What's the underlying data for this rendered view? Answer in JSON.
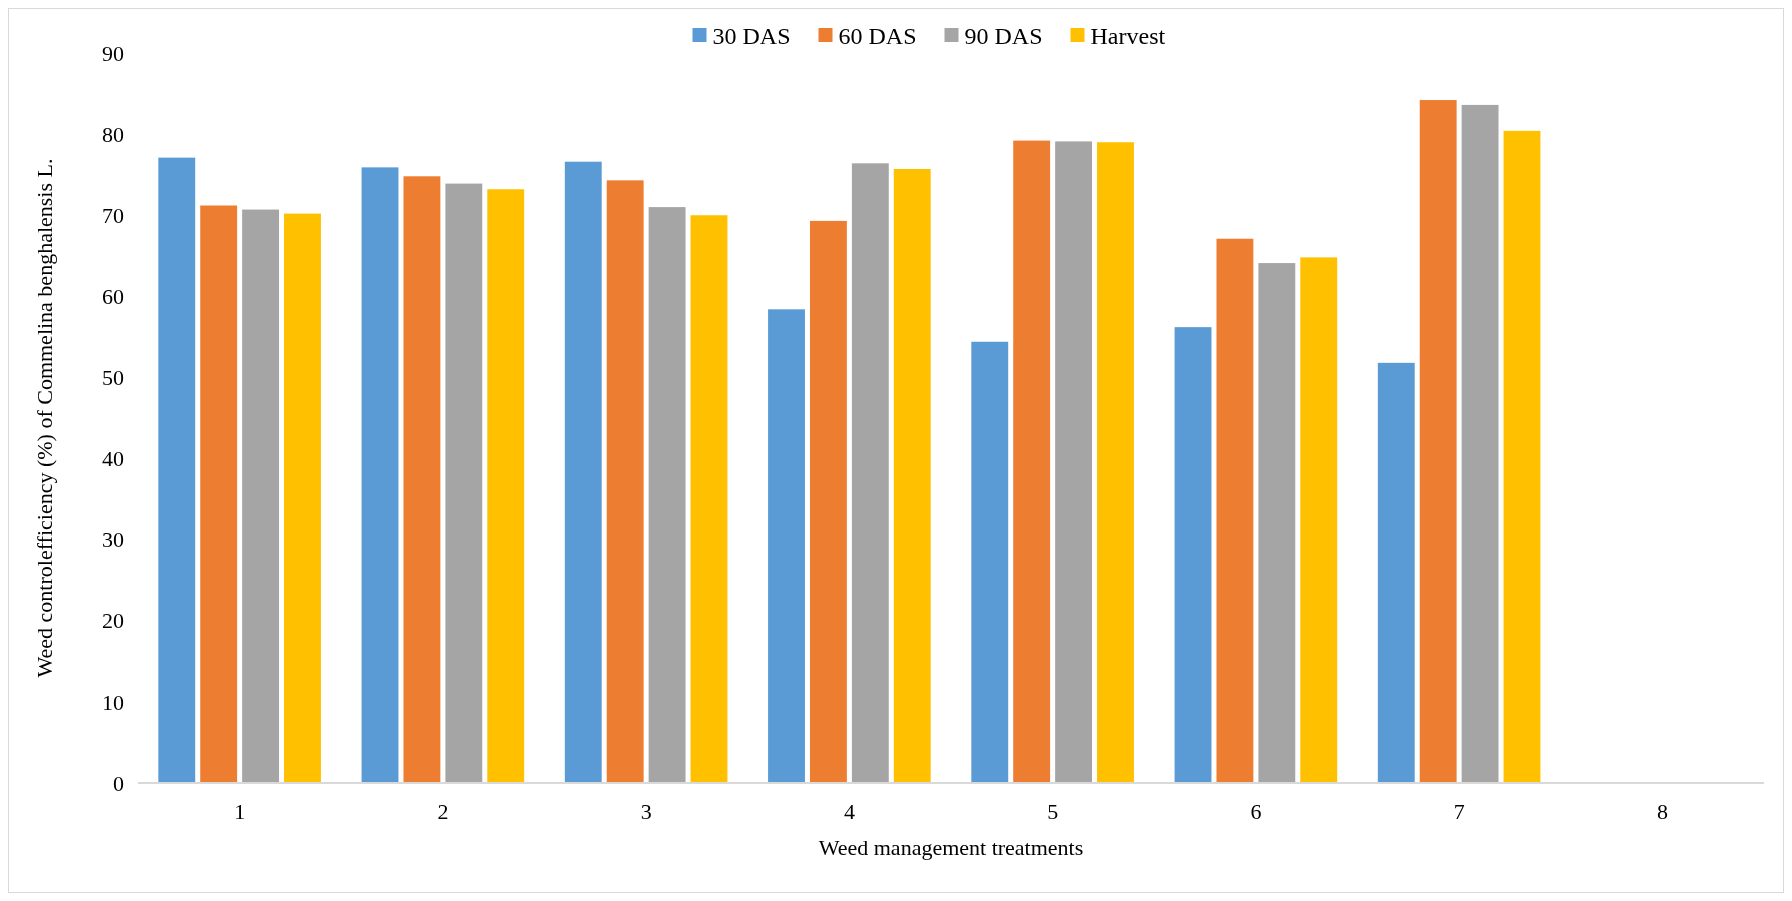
{
  "chart_data": {
    "type": "bar",
    "xlabel": "Weed management treatments",
    "ylabel": "Weed controlefficiency (%) of Commelina benghalensis L.",
    "categories": [
      "1",
      "2",
      "3",
      "4",
      "5",
      "6",
      "7",
      "8"
    ],
    "series": [
      {
        "name": "30 DAS",
        "color": "#5b9bd5",
        "values": [
          77.1,
          75.9,
          76.6,
          58.4,
          54.4,
          56.2,
          51.8,
          null
        ]
      },
      {
        "name": "60 DAS",
        "color": "#ed7d31",
        "values": [
          71.2,
          74.8,
          74.3,
          69.3,
          79.2,
          67.1,
          84.2,
          null
        ]
      },
      {
        "name": "90 DAS",
        "color": "#a5a5a5",
        "values": [
          70.7,
          73.9,
          71.0,
          76.4,
          79.1,
          64.1,
          83.6,
          null
        ]
      },
      {
        "name": "Harvest",
        "color": "#ffc000",
        "values": [
          70.2,
          73.2,
          70.0,
          75.7,
          79.0,
          64.8,
          80.4,
          null
        ]
      }
    ],
    "ylim": [
      0,
      90
    ],
    "yticks": [
      0,
      10,
      20,
      30,
      40,
      50,
      60,
      70,
      80,
      90
    ],
    "legend": "top",
    "grid": false
  }
}
